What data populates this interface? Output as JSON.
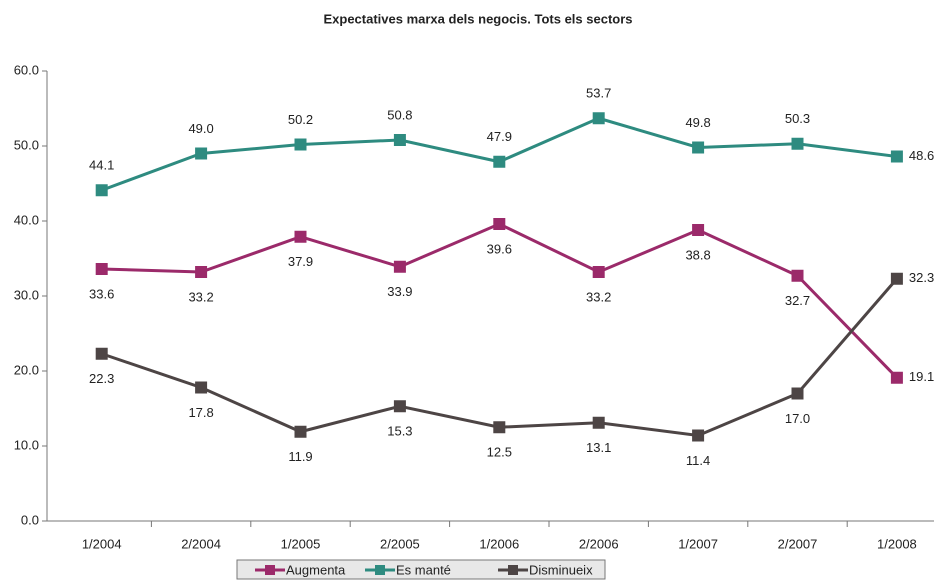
{
  "chart_data": {
    "type": "line",
    "title": "Expectatives marxa dels negocis. Tots els sectors",
    "categories": [
      "1/2004",
      "2/2004",
      "1/2005",
      "2/2005",
      "1/2006",
      "2/2006",
      "1/2007",
      "2/2007",
      "1/2008"
    ],
    "series": [
      {
        "name": "Augmenta",
        "color": "#9b2a6a",
        "values": [
          33.6,
          33.2,
          37.9,
          33.9,
          39.6,
          33.2,
          38.8,
          32.7,
          19.1
        ],
        "value_labels": [
          "33.6",
          "33.2",
          "37.9",
          "33.9",
          "39.6",
          "33.2",
          "38.8",
          "32.7",
          "19.1"
        ]
      },
      {
        "name": "Es manté",
        "color": "#2e8b80",
        "values": [
          44.1,
          49,
          50.2,
          50.8,
          47.9,
          53.7,
          49.8,
          50.3,
          48.6
        ],
        "value_labels": [
          "44.1",
          "49.0",
          "50.2",
          "50.8",
          "47.9",
          "53.7",
          "49.8",
          "50.3",
          "48.6"
        ]
      },
      {
        "name": "Disminueix",
        "color": "#4d4545",
        "values": [
          22.3,
          17.8,
          11.9,
          15.3,
          12.5,
          13.1,
          11.4,
          17,
          32.3
        ],
        "value_labels": [
          "22.3",
          "17.8",
          "11.9",
          "15.3",
          "12.5",
          "13.1",
          "11.4",
          "17.0",
          "32.3"
        ]
      }
    ],
    "ylim": [
      0,
      60
    ],
    "yticks": [
      {
        "value": 0,
        "label": "0.0"
      },
      {
        "value": 10,
        "label": "10.0"
      },
      {
        "value": 20,
        "label": "20.0"
      },
      {
        "value": 30,
        "label": "30.0"
      },
      {
        "value": 40,
        "label": "40.0"
      },
      {
        "value": 50,
        "label": "50.0"
      },
      {
        "value": 60,
        "label": "60.0"
      }
    ],
    "grid": false
  }
}
